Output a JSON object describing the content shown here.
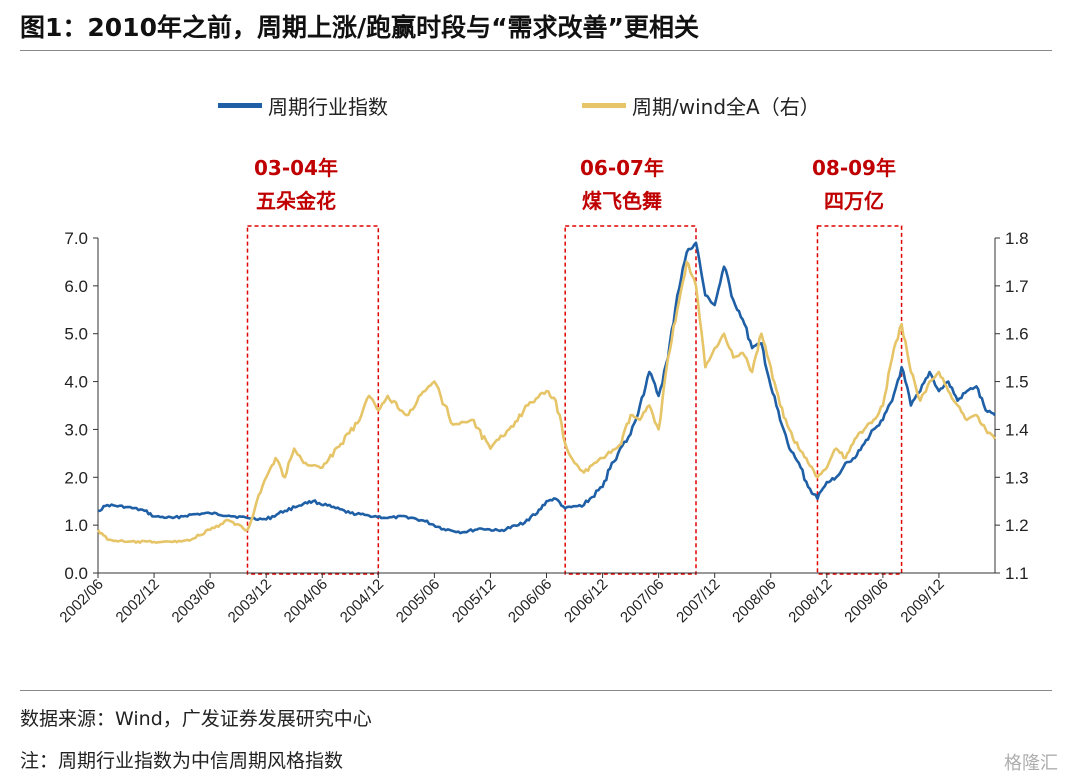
{
  "header": {
    "title": "图1：2010年之前，周期上涨/跑赢时段与“需求改善”更相关"
  },
  "legend": [
    {
      "label": "周期行业指数",
      "color": "#1F5FA6"
    },
    {
      "label": "周期/wind全A（右）",
      "color": "#E6C468"
    }
  ],
  "annotations": [
    {
      "period": "03-04年",
      "label": "五朵金花"
    },
    {
      "period": "06-07年",
      "label": "煤飞色舞"
    },
    {
      "period": "08-09年",
      "label": "四万亿"
    }
  ],
  "footer": {
    "source": "数据来源：Wind，广发证券发展研究中心",
    "note": "注：周期行业指数为中信周期风格指数",
    "watermark": "格隆汇"
  },
  "colors": {
    "accent_red": "#C00000",
    "blue": "#1F5FA6",
    "gold": "#E6C468"
  },
  "chart_data": {
    "type": "line",
    "x_ticks": [
      "2002/06",
      "2002/12",
      "2003/06",
      "2003/12",
      "2004/06",
      "2004/12",
      "2005/06",
      "2005/12",
      "2006/06",
      "2006/12",
      "2007/06",
      "2007/12",
      "2008/06",
      "2008/12",
      "2009/06",
      "2009/12"
    ],
    "y_left_ticks": [
      "0.0",
      "1.0",
      "2.0",
      "3.0",
      "4.0",
      "5.0",
      "6.0",
      "7.0"
    ],
    "y_right_ticks": [
      "1.1",
      "1.2",
      "1.3",
      "1.4",
      "1.5",
      "1.6",
      "1.7",
      "1.8"
    ],
    "ylim_left": [
      0,
      7
    ],
    "ylim_right": [
      1.1,
      1.8
    ],
    "x_range": [
      "2002/06",
      "2010/06"
    ],
    "highlight_periods": [
      {
        "start": "2003/10",
        "end": "2004/12"
      },
      {
        "start": "2006/08",
        "end": "2007/10"
      },
      {
        "start": "2008/11",
        "end": "2009/08"
      }
    ],
    "series": [
      {
        "name": "周期行业指数",
        "axis": "left",
        "points": [
          [
            "2002/06",
            1.3
          ],
          [
            "2002/07",
            1.42
          ],
          [
            "2002/09",
            1.38
          ],
          [
            "2002/11",
            1.3
          ],
          [
            "2002/12",
            1.18
          ],
          [
            "2003/02",
            1.15
          ],
          [
            "2003/04",
            1.22
          ],
          [
            "2003/06",
            1.25
          ],
          [
            "2003/08",
            1.2
          ],
          [
            "2003/10",
            1.15
          ],
          [
            "2003/12",
            1.12
          ],
          [
            "2004/02",
            1.3
          ],
          [
            "2004/04",
            1.45
          ],
          [
            "2004/05",
            1.5
          ],
          [
            "2004/07",
            1.38
          ],
          [
            "2004/09",
            1.25
          ],
          [
            "2004/11",
            1.2
          ],
          [
            "2005/01",
            1.15
          ],
          [
            "2005/03",
            1.18
          ],
          [
            "2005/05",
            1.08
          ],
          [
            "2005/07",
            0.92
          ],
          [
            "2005/09",
            0.85
          ],
          [
            "2005/11",
            0.93
          ],
          [
            "2006/01",
            0.88
          ],
          [
            "2006/03",
            1.0
          ],
          [
            "2006/05",
            1.25
          ],
          [
            "2006/06",
            1.5
          ],
          [
            "2006/07",
            1.55
          ],
          [
            "2006/08",
            1.35
          ],
          [
            "2006/10",
            1.42
          ],
          [
            "2006/12",
            1.8
          ],
          [
            "2007/01",
            2.3
          ],
          [
            "2007/03",
            2.9
          ],
          [
            "2007/04",
            3.5
          ],
          [
            "2007/05",
            4.2
          ],
          [
            "2007/06",
            3.7
          ],
          [
            "2007/07",
            4.5
          ],
          [
            "2007/08",
            5.8
          ],
          [
            "2007/09",
            6.7
          ],
          [
            "2007/10",
            6.9
          ],
          [
            "2007/11",
            5.8
          ],
          [
            "2007/12",
            5.6
          ],
          [
            "2008/01",
            6.4
          ],
          [
            "2008/02",
            5.7
          ],
          [
            "2008/03",
            5.3
          ],
          [
            "2008/04",
            4.7
          ],
          [
            "2008/05",
            4.8
          ],
          [
            "2008/06",
            3.9
          ],
          [
            "2008/07",
            3.2
          ],
          [
            "2008/08",
            2.6
          ],
          [
            "2008/09",
            2.3
          ],
          [
            "2008/10",
            1.8
          ],
          [
            "2008/11",
            1.55
          ],
          [
            "2008/12",
            1.9
          ],
          [
            "2009/01",
            2.0
          ],
          [
            "2009/02",
            2.3
          ],
          [
            "2009/03",
            2.4
          ],
          [
            "2009/04",
            2.7
          ],
          [
            "2009/05",
            3.0
          ],
          [
            "2009/06",
            3.2
          ],
          [
            "2009/07",
            3.6
          ],
          [
            "2009/08",
            4.3
          ],
          [
            "2009/09",
            3.5
          ],
          [
            "2009/10",
            3.8
          ],
          [
            "2009/11",
            4.2
          ],
          [
            "2009/12",
            3.8
          ],
          [
            "2010/01",
            4.0
          ],
          [
            "2010/02",
            3.6
          ],
          [
            "2010/03",
            3.8
          ],
          [
            "2010/04",
            3.9
          ],
          [
            "2010/05",
            3.4
          ],
          [
            "2010/06",
            3.3
          ]
        ]
      },
      {
        "name": "周期/wind全A（右）",
        "axis": "right",
        "points": [
          [
            "2002/06",
            1.19
          ],
          [
            "2002/07",
            1.17
          ],
          [
            "2002/09",
            1.165
          ],
          [
            "2002/12",
            1.165
          ],
          [
            "2003/02",
            1.165
          ],
          [
            "2003/04",
            1.17
          ],
          [
            "2003/06",
            1.19
          ],
          [
            "2003/08",
            1.21
          ],
          [
            "2003/10",
            1.19
          ],
          [
            "2003/11",
            1.25
          ],
          [
            "2003/12",
            1.3
          ],
          [
            "2004/01",
            1.34
          ],
          [
            "2004/02",
            1.3
          ],
          [
            "2004/03",
            1.36
          ],
          [
            "2004/04",
            1.33
          ],
          [
            "2004/06",
            1.32
          ],
          [
            "2004/08",
            1.37
          ],
          [
            "2004/10",
            1.42
          ],
          [
            "2004/11",
            1.47
          ],
          [
            "2004/12",
            1.44
          ],
          [
            "2005/01",
            1.47
          ],
          [
            "2005/03",
            1.43
          ],
          [
            "2005/05",
            1.48
          ],
          [
            "2005/06",
            1.5
          ],
          [
            "2005/08",
            1.41
          ],
          [
            "2005/10",
            1.42
          ],
          [
            "2005/12",
            1.36
          ],
          [
            "2006/02",
            1.4
          ],
          [
            "2006/04",
            1.45
          ],
          [
            "2006/06",
            1.48
          ],
          [
            "2006/07",
            1.46
          ],
          [
            "2006/08",
            1.37
          ],
          [
            "2006/09",
            1.33
          ],
          [
            "2006/10",
            1.31
          ],
          [
            "2006/12",
            1.34
          ],
          [
            "2007/02",
            1.37
          ],
          [
            "2007/03",
            1.43
          ],
          [
            "2007/04",
            1.42
          ],
          [
            "2007/05",
            1.45
          ],
          [
            "2007/06",
            1.4
          ],
          [
            "2007/07",
            1.55
          ],
          [
            "2007/08",
            1.65
          ],
          [
            "2007/09",
            1.75
          ],
          [
            "2007/10",
            1.7
          ],
          [
            "2007/11",
            1.53
          ],
          [
            "2007/12",
            1.57
          ],
          [
            "2008/01",
            1.6
          ],
          [
            "2008/02",
            1.55
          ],
          [
            "2008/03",
            1.56
          ],
          [
            "2008/04",
            1.52
          ],
          [
            "2008/05",
            1.6
          ],
          [
            "2008/06",
            1.53
          ],
          [
            "2008/07",
            1.45
          ],
          [
            "2008/08",
            1.4
          ],
          [
            "2008/09",
            1.36
          ],
          [
            "2008/10",
            1.33
          ],
          [
            "2008/11",
            1.3
          ],
          [
            "2008/12",
            1.32
          ],
          [
            "2009/01",
            1.36
          ],
          [
            "2009/02",
            1.34
          ],
          [
            "2009/03",
            1.38
          ],
          [
            "2009/04",
            1.4
          ],
          [
            "2009/05",
            1.42
          ],
          [
            "2009/06",
            1.45
          ],
          [
            "2009/07",
            1.55
          ],
          [
            "2009/08",
            1.62
          ],
          [
            "2009/09",
            1.52
          ],
          [
            "2009/10",
            1.46
          ],
          [
            "2009/11",
            1.5
          ],
          [
            "2009/12",
            1.52
          ],
          [
            "2010/01",
            1.48
          ],
          [
            "2010/02",
            1.45
          ],
          [
            "2010/03",
            1.42
          ],
          [
            "2010/04",
            1.43
          ],
          [
            "2010/05",
            1.4
          ],
          [
            "2010/06",
            1.38
          ]
        ]
      }
    ]
  }
}
